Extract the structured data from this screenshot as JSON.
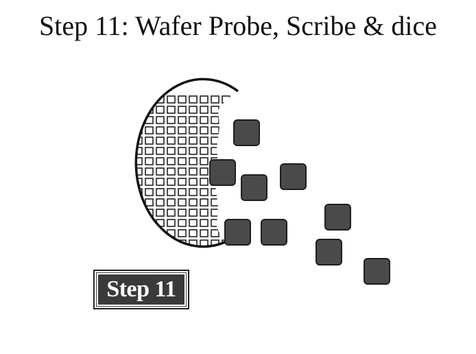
{
  "title": "Step 11: Wafer Probe, Scribe & dice",
  "badge": {
    "label": "Step 11"
  },
  "colors": {
    "die_fill": "#4a4a4a",
    "die_stroke": "#1e1e1e",
    "wafer_stroke": "#111111",
    "grid_stroke": "#222222",
    "badge_bg": "#3a3a3a"
  }
}
